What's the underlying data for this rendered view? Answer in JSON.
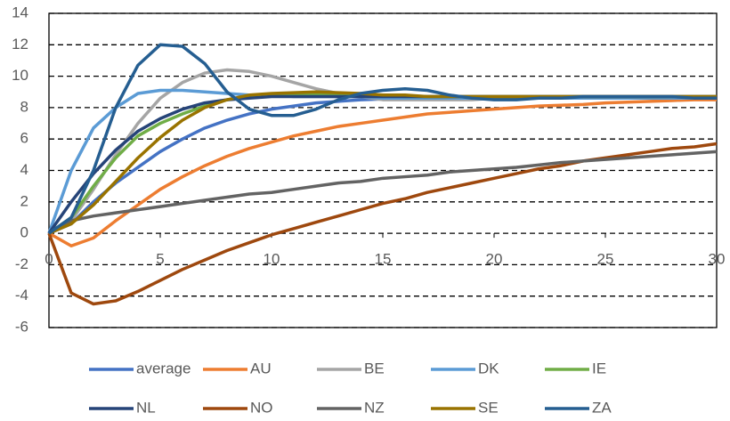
{
  "chart_data": {
    "type": "line",
    "x": [
      0,
      1,
      2,
      3,
      4,
      5,
      6,
      7,
      8,
      9,
      10,
      11,
      12,
      13,
      14,
      15,
      16,
      17,
      18,
      19,
      20,
      21,
      22,
      23,
      24,
      25,
      26,
      27,
      28,
      29,
      30
    ],
    "xlim": [
      0,
      30
    ],
    "xticks": [
      0,
      5,
      10,
      15,
      20,
      25,
      30
    ],
    "ylim": [
      -6,
      14
    ],
    "yticks": [
      -6,
      -4,
      -2,
      0,
      2,
      4,
      6,
      8,
      10,
      12,
      14
    ],
    "grid": true,
    "legend": "bottom",
    "series": [
      {
        "name": "average",
        "color": "#4472c4",
        "values": [
          0,
          0.6,
          2,
          3.2,
          4.2,
          5.2,
          6,
          6.7,
          7.2,
          7.6,
          7.9,
          8.1,
          8.3,
          8.4,
          8.5,
          8.55,
          8.6,
          8.6,
          8.6,
          8.6,
          8.6,
          8.6,
          8.6,
          8.6,
          8.6,
          8.6,
          8.6,
          8.6,
          8.6,
          8.6,
          8.6
        ]
      },
      {
        "name": "AU",
        "color": "#ed7d31",
        "values": [
          0,
          -0.8,
          -0.3,
          0.8,
          1.8,
          2.8,
          3.6,
          4.3,
          4.9,
          5.4,
          5.8,
          6.2,
          6.5,
          6.8,
          7.0,
          7.2,
          7.4,
          7.6,
          7.7,
          7.8,
          7.9,
          8.0,
          8.1,
          8.15,
          8.2,
          8.3,
          8.35,
          8.4,
          8.45,
          8.5,
          8.5
        ]
      },
      {
        "name": "BE",
        "color": "#a5a5a5",
        "values": [
          0,
          0.8,
          2.8,
          5,
          7,
          8.6,
          9.6,
          10.2,
          10.4,
          10.3,
          10,
          9.6,
          9.2,
          8.9,
          8.7,
          8.5,
          8.5,
          8.5,
          8.5,
          8.5,
          8.6,
          8.6,
          8.6,
          8.6,
          8.6,
          8.6,
          8.6,
          8.6,
          8.6,
          8.6,
          8.6
        ]
      },
      {
        "name": "DK",
        "color": "#5b9bd5",
        "values": [
          0,
          4,
          6.7,
          8,
          8.9,
          9.1,
          9.1,
          9,
          8.9,
          8.8,
          8.8,
          8.7,
          8.7,
          8.7,
          8.7,
          8.6,
          8.6,
          8.6,
          8.6,
          8.6,
          8.6,
          8.6,
          8.6,
          8.6,
          8.6,
          8.6,
          8.6,
          8.6,
          8.6,
          8.6,
          8.6
        ]
      },
      {
        "name": "IE",
        "color": "#70ad47",
        "values": [
          0,
          1,
          3,
          4.8,
          6.2,
          7,
          7.6,
          8.1,
          8.5,
          8.7,
          8.8,
          8.8,
          8.8,
          8.8,
          8.8,
          8.8,
          8.7,
          8.7,
          8.7,
          8.7,
          8.7,
          8.7,
          8.7,
          8.7,
          8.7,
          8.7,
          8.7,
          8.7,
          8.7,
          8.7,
          8.7
        ]
      },
      {
        "name": "NL",
        "color": "#264478",
        "values": [
          0,
          2,
          3.8,
          5.3,
          6.5,
          7.3,
          7.9,
          8.3,
          8.5,
          8.6,
          8.7,
          8.7,
          8.7,
          8.7,
          8.7,
          8.7,
          8.7,
          8.7,
          8.7,
          8.7,
          8.7,
          8.7,
          8.7,
          8.7,
          8.7,
          8.7,
          8.7,
          8.7,
          8.7,
          8.7,
          8.7
        ]
      },
      {
        "name": "NO",
        "color": "#9e480e",
        "values": [
          0,
          -3.8,
          -4.5,
          -4.3,
          -3.7,
          -3.0,
          -2.3,
          -1.7,
          -1.1,
          -0.6,
          -0.1,
          0.3,
          0.7,
          1.1,
          1.5,
          1.9,
          2.2,
          2.6,
          2.9,
          3.2,
          3.5,
          3.8,
          4.1,
          4.3,
          4.6,
          4.8,
          5,
          5.2,
          5.4,
          5.5,
          5.7
        ]
      },
      {
        "name": "NZ",
        "color": "#636363",
        "values": [
          0,
          0.8,
          1.1,
          1.3,
          1.5,
          1.7,
          1.9,
          2.1,
          2.3,
          2.5,
          2.6,
          2.8,
          3.0,
          3.2,
          3.3,
          3.5,
          3.6,
          3.7,
          3.9,
          4.0,
          4.1,
          4.2,
          4.35,
          4.5,
          4.6,
          4.7,
          4.8,
          4.9,
          5.0,
          5.1,
          5.2
        ]
      },
      {
        "name": "SE",
        "color": "#997300",
        "values": [
          0,
          0.6,
          1.8,
          3.3,
          4.8,
          6.1,
          7.2,
          8,
          8.5,
          8.8,
          8.9,
          8.95,
          9,
          8.95,
          8.9,
          8.8,
          8.8,
          8.7,
          8.7,
          8.7,
          8.7,
          8.7,
          8.7,
          8.7,
          8.7,
          8.7,
          8.7,
          8.7,
          8.7,
          8.7,
          8.7
        ]
      },
      {
        "name": "ZA",
        "color": "#255e91",
        "values": [
          0,
          1,
          4,
          8,
          10.7,
          12,
          11.9,
          10.8,
          9,
          7.9,
          7.5,
          7.5,
          7.9,
          8.5,
          8.9,
          9.1,
          9.2,
          9.1,
          8.8,
          8.6,
          8.5,
          8.5,
          8.6,
          8.6,
          8.7,
          8.7,
          8.7,
          8.7,
          8.7,
          8.6,
          8.6
        ]
      }
    ]
  }
}
